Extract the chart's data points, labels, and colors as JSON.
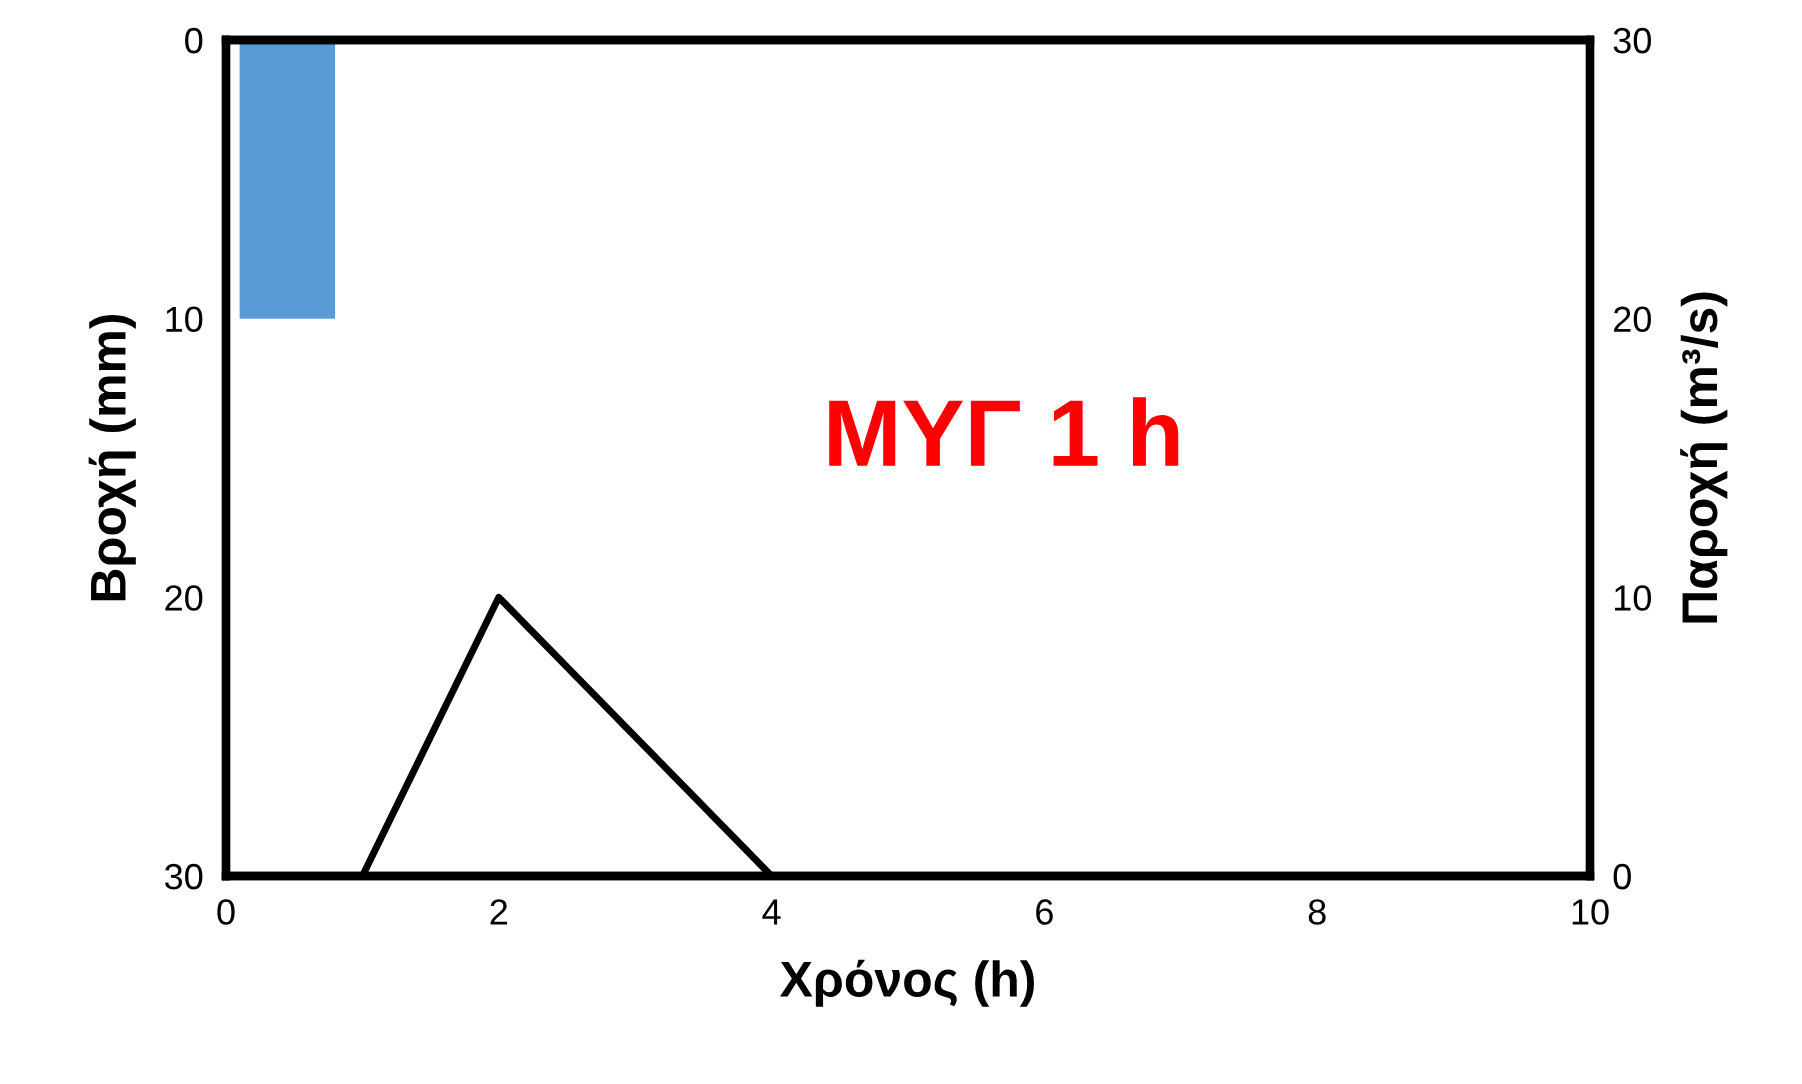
{
  "chart_data": {
    "type": "bar",
    "xlabel": "Χρόνος (h)",
    "ylabel": "Βροχή (mm)",
    "y2label": "Παροχή (m³/s)",
    "xlim": [
      0,
      10
    ],
    "xticks": [
      0,
      2,
      4,
      6,
      8,
      10
    ],
    "ylim": [
      30,
      0
    ],
    "yticks": [
      0,
      10,
      20,
      30
    ],
    "y2lim": [
      0,
      30
    ],
    "y2ticks": [
      0,
      10,
      20,
      30
    ],
    "grid": false,
    "legend": false,
    "annotations": [
      "ΜΥΓ 1 h"
    ],
    "series": [
      {
        "x": [
          0.45
        ],
        "values": [
          10
        ],
        "color": "#5b9bd5"
      },
      {
        "type": "line",
        "axis": "y2",
        "x": [
          1,
          2,
          4
        ],
        "values": [
          0,
          10,
          0
        ],
        "color": "#000000",
        "marker": "none",
        "line_style": "solid"
      }
    ]
  }
}
